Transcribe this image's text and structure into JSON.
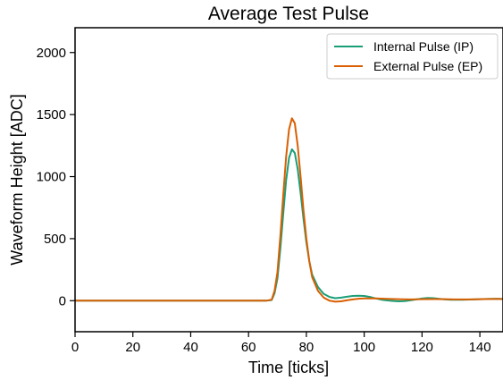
{
  "chart_data": {
    "type": "line",
    "title": "Average Test Pulse",
    "xlabel": "Time [ticks]",
    "ylabel": "Waveform Height [ADC]",
    "xlim": [
      0,
      148
    ],
    "ylim": [
      -250,
      2200
    ],
    "xticks": [
      0,
      20,
      40,
      60,
      80,
      100,
      120,
      140
    ],
    "yticks": [
      0,
      500,
      1000,
      1500,
      2000
    ],
    "grid": false,
    "legend_position": "top-right",
    "series": [
      {
        "name": "Internal Pulse (IP)",
        "color": "#1a9e77",
        "points": [
          [
            0,
            0
          ],
          [
            66,
            0
          ],
          [
            68,
            5
          ],
          [
            69,
            60
          ],
          [
            70,
            180
          ],
          [
            71,
            420
          ],
          [
            72,
            700
          ],
          [
            73,
            970
          ],
          [
            74,
            1150
          ],
          [
            75,
            1220
          ],
          [
            76,
            1190
          ],
          [
            77,
            1060
          ],
          [
            78,
            870
          ],
          [
            79,
            660
          ],
          [
            80,
            470
          ],
          [
            81,
            320
          ],
          [
            82,
            210
          ],
          [
            84,
            110
          ],
          [
            86,
            55
          ],
          [
            88,
            30
          ],
          [
            90,
            20
          ],
          [
            92,
            25
          ],
          [
            94,
            32
          ],
          [
            96,
            38
          ],
          [
            98,
            40
          ],
          [
            100,
            38
          ],
          [
            102,
            30
          ],
          [
            104,
            18
          ],
          [
            106,
            8
          ],
          [
            108,
            2
          ],
          [
            110,
            -2
          ],
          [
            112,
            -5
          ],
          [
            114,
            -3
          ],
          [
            116,
            3
          ],
          [
            118,
            10
          ],
          [
            120,
            18
          ],
          [
            122,
            22
          ],
          [
            124,
            20
          ],
          [
            126,
            15
          ],
          [
            128,
            10
          ],
          [
            130,
            8
          ],
          [
            134,
            8
          ],
          [
            138,
            10
          ],
          [
            142,
            14
          ],
          [
            146,
            16
          ],
          [
            148,
            14
          ]
        ]
      },
      {
        "name": "External Pulse (EP)",
        "color": "#d95f02",
        "points": [
          [
            0,
            0
          ],
          [
            66,
            0
          ],
          [
            68,
            8
          ],
          [
            69,
            80
          ],
          [
            70,
            230
          ],
          [
            71,
            520
          ],
          [
            72,
            850
          ],
          [
            73,
            1160
          ],
          [
            74,
            1380
          ],
          [
            75,
            1470
          ],
          [
            76,
            1430
          ],
          [
            77,
            1250
          ],
          [
            78,
            1000
          ],
          [
            79,
            730
          ],
          [
            80,
            500
          ],
          [
            81,
            320
          ],
          [
            82,
            190
          ],
          [
            84,
            80
          ],
          [
            86,
            25
          ],
          [
            88,
            0
          ],
          [
            90,
            -8
          ],
          [
            92,
            -5
          ],
          [
            94,
            3
          ],
          [
            96,
            10
          ],
          [
            98,
            16
          ],
          [
            100,
            18
          ],
          [
            104,
            18
          ],
          [
            108,
            15
          ],
          [
            112,
            12
          ],
          [
            116,
            10
          ],
          [
            120,
            12
          ],
          [
            124,
            13
          ],
          [
            128,
            12
          ],
          [
            132,
            10
          ],
          [
            136,
            10
          ],
          [
            140,
            12
          ],
          [
            144,
            14
          ],
          [
            148,
            14
          ]
        ]
      }
    ]
  }
}
